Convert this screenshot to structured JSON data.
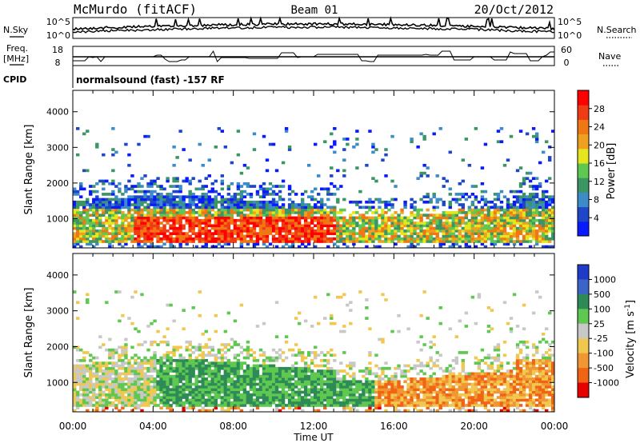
{
  "header": {
    "station": "McMurdo (fitACF)",
    "beam": "Beam 01",
    "date": "20/Oct/2012"
  },
  "side_labels": {
    "nsky": "N.Sky",
    "nsearch": "N.Search",
    "freq": "Freq.",
    "freq_unit": "[MHz]",
    "nave": "Nave",
    "cpid": "CPID",
    "cpid_value": "normalsound (fast) -157 RF",
    "noise_tick_top": "10^5",
    "noise_tick_bottom": "10^0",
    "noise_tick_top_right": "10^5",
    "noise_tick_bottom_right": "10^0",
    "freq_tick_top": "18",
    "freq_tick_bottom": "8",
    "nave_tick_top": "60",
    "nave_tick_bottom": "0"
  },
  "chart_data": [
    {
      "type": "heatmap",
      "title": "",
      "xlabel": "",
      "ylabel": "Slant Range [km]",
      "x_ticks": [
        "00:00",
        "04:00",
        "08:00",
        "12:00",
        "16:00",
        "20:00",
        "00:00"
      ],
      "y_ticks": [
        1000,
        2000,
        3000,
        4000
      ],
      "xlim_hours": [
        0,
        24
      ],
      "ylim_km": [
        180,
        4600
      ],
      "colorbar": {
        "label": "Power [dB]",
        "ticks": [
          4,
          8,
          12,
          16,
          20,
          24,
          28
        ],
        "range": [
          0,
          32
        ],
        "colors": [
          "#0a1aff",
          "#1e46c8",
          "#3c8cc8",
          "#3c9664",
          "#5fc850",
          "#e6e61e",
          "#f0a020",
          "#f07814",
          "#f03c14",
          "#ff0000"
        ]
      }
    },
    {
      "type": "heatmap",
      "title": "",
      "xlabel": "Time UT",
      "ylabel": "Slant Range [km]",
      "x_ticks": [
        "00:00",
        "04:00",
        "08:00",
        "12:00",
        "16:00",
        "20:00",
        "00:00"
      ],
      "y_ticks": [
        1000,
        2000,
        3000,
        4000
      ],
      "xlim_hours": [
        0,
        24
      ],
      "ylim_km": [
        180,
        4600
      ],
      "colorbar": {
        "label": "Velocity [m s^-1]",
        "ticks": [
          1000,
          500,
          100,
          25,
          -25,
          -100,
          -500,
          -1000
        ],
        "colors": [
          "#1e3cc8",
          "#3c64c8",
          "#2e8b57",
          "#5fc850",
          "#c8c8c8",
          "#f0c850",
          "#f09632",
          "#f06414",
          "#e60000"
        ]
      }
    }
  ]
}
